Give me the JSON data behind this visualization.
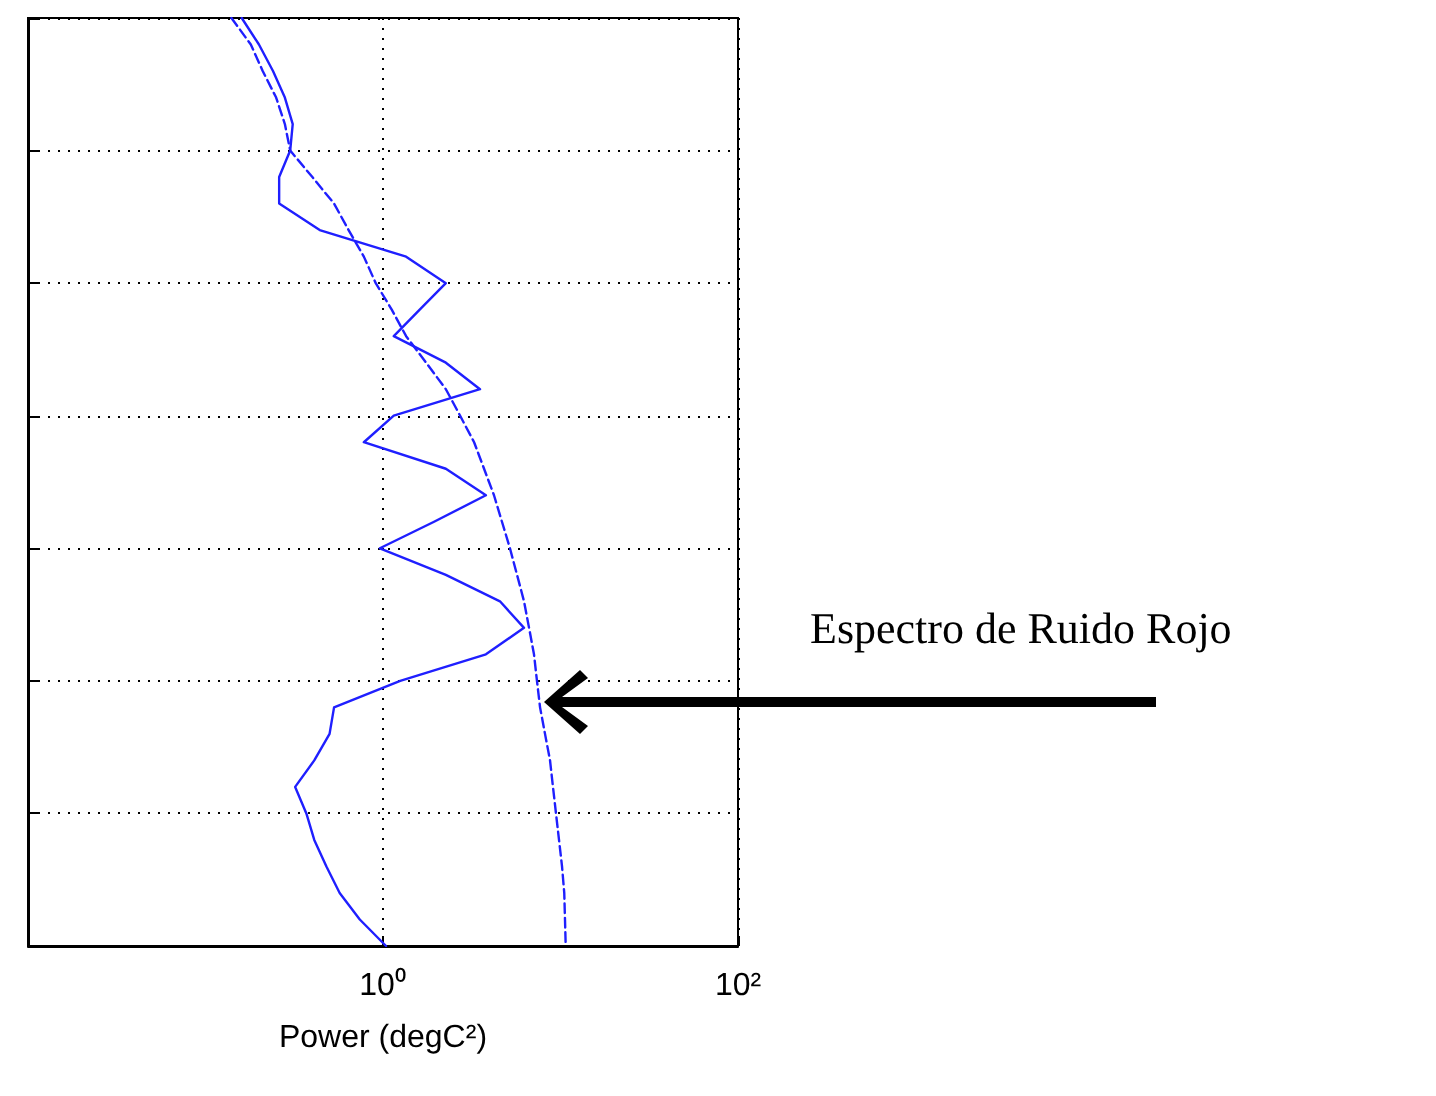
{
  "chart_data": {
    "type": "line",
    "orientation": "horizontal",
    "xlabel": "Power (degC²)",
    "categories": [
      null,
      null,
      null,
      null,
      null,
      null,
      null,
      null,
      null,
      null,
      null,
      null,
      null,
      null,
      null,
      null,
      null,
      null,
      null,
      null,
      null,
      null,
      null,
      null,
      null,
      null,
      null,
      null,
      null,
      null,
      null,
      null,
      null,
      null,
      null,
      null
    ],
    "series": [
      {
        "color": "#1f1fff",
        "line_style": "solid",
        "values": [
          0.16,
          0.2,
          0.24,
          0.28,
          0.31,
          0.3,
          0.26,
          0.26,
          0.44,
          1.35,
          2.26,
          1.61,
          1.15,
          2.26,
          3.52,
          1.15,
          0.78,
          2.26,
          3.8,
          1.94,
          0.96,
          2.26,
          4.56,
          6.23,
          3.8,
          1.25,
          0.53,
          0.5,
          0.41,
          0.32,
          0.37,
          0.41,
          0.48,
          0.57,
          0.74,
          1.04
        ]
      },
      {
        "color": "#1f1fff",
        "line_style": "dashed",
        "values": [
          0.14,
          0.18,
          0.21,
          0.25,
          0.28,
          0.3,
          0.4,
          0.53,
          0.64,
          0.78,
          0.91,
          1.12,
          1.35,
          1.75,
          2.26,
          2.72,
          3.26,
          3.71,
          4.22,
          4.68,
          5.19,
          5.69,
          6.23,
          6.65,
          7.09,
          7.37,
          7.67,
          8.18,
          8.73,
          9.07,
          9.43,
          9.81,
          10.2,
          10.5,
          10.6,
          10.7
        ]
      }
    ],
    "xlim": [
      0.01,
      100
    ],
    "xticks": [
      {
        "value": 0.01,
        "label": null
      },
      {
        "value": 1,
        "label": "10⁰"
      },
      {
        "value": 100,
        "label": "10²"
      }
    ],
    "log": "x",
    "grid": true,
    "tick_labels": "x",
    "marker": "none",
    "annotations": [
      "Espectro de Ruido Rojo"
    ]
  }
}
